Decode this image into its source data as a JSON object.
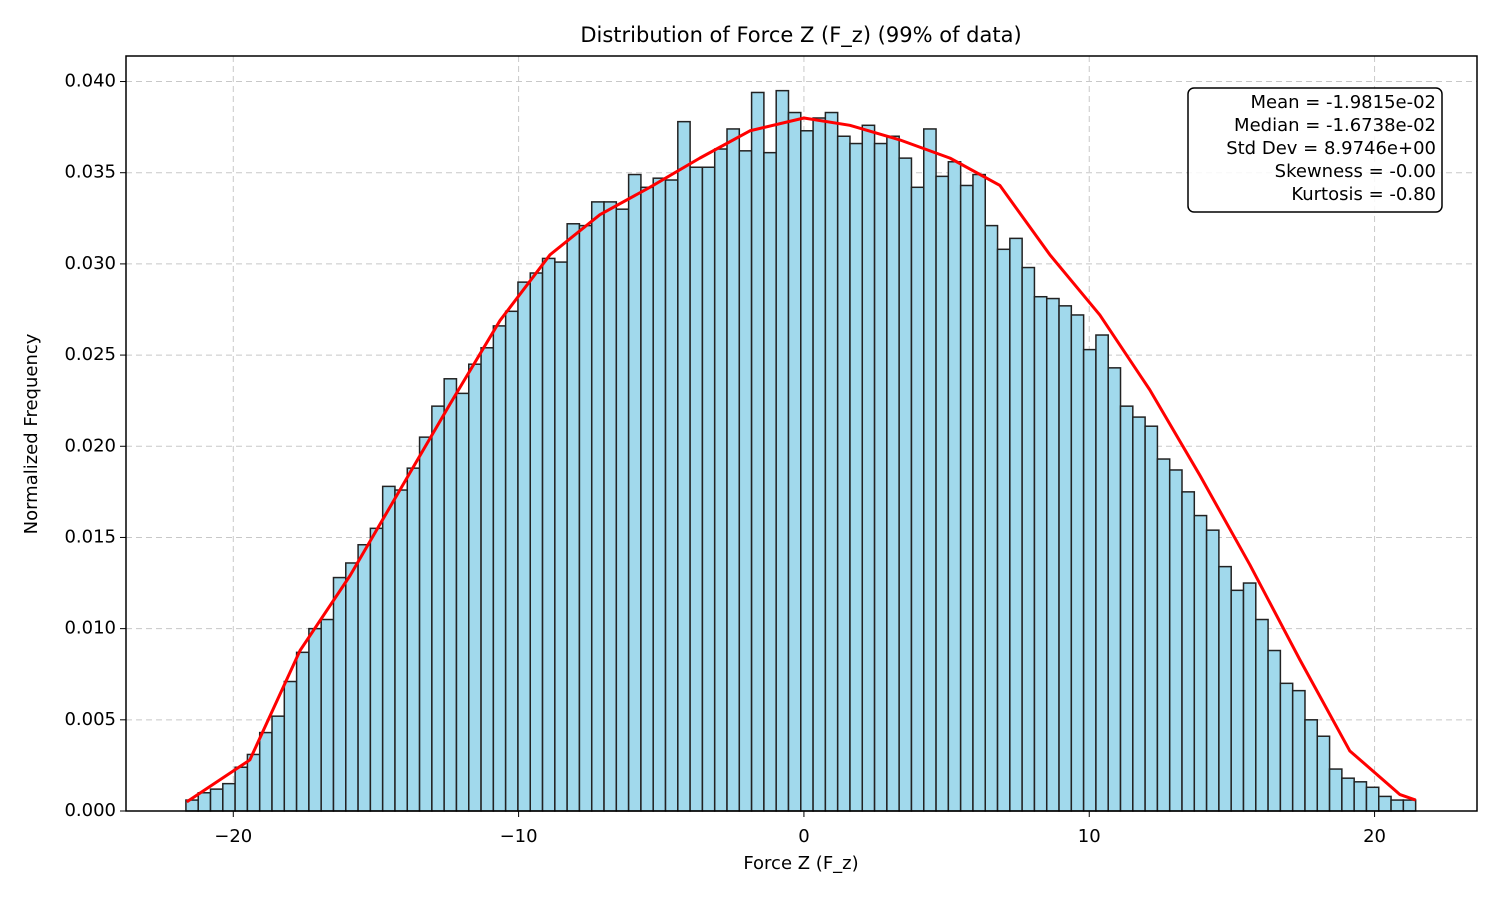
{
  "chart_data": {
    "type": "histogram",
    "title": "Distribution of Force Z (F_z) (99% of data)",
    "x_label": "Force Z (F_z)",
    "y_label": "Normalized Frequency",
    "color": "#a1d9ec",
    "edgecolor": "#222222",
    "bins": [
      -21.66,
      -21.229,
      -20.798,
      -20.367,
      -19.936,
      -19.505,
      -19.074,
      -18.643,
      -18.212,
      -17.781,
      -17.35,
      -16.919,
      -16.488,
      -16.057,
      -15.626,
      -15.195,
      -14.764,
      -14.333,
      -13.902,
      -13.471,
      -13.04,
      -12.609,
      -12.178,
      -11.747,
      -11.316,
      -10.885,
      -10.454,
      -10.023,
      -9.592,
      -9.161,
      -8.73,
      -8.299,
      -7.868,
      -7.437,
      -7.006,
      -6.575,
      -6.144,
      -5.713,
      -5.282,
      -4.851,
      -4.42,
      -3.989,
      -3.558,
      -3.127,
      -2.696,
      -2.265,
      -1.834,
      -1.403,
      -0.972,
      -0.541,
      -0.11,
      0.321,
      0.752,
      1.183,
      1.614,
      2.045,
      2.476,
      2.907,
      3.338,
      3.769,
      4.2,
      4.631,
      5.062,
      5.493,
      5.924,
      6.355,
      6.786,
      7.217,
      7.648,
      8.079,
      8.51,
      8.941,
      9.372,
      9.803,
      10.234,
      10.665,
      11.096,
      11.527,
      11.958,
      12.389,
      12.82,
      13.251,
      13.682,
      14.113,
      14.544,
      14.975,
      15.406,
      15.837,
      16.268,
      16.699,
      17.13,
      17.561,
      17.992,
      18.423,
      18.854,
      19.285,
      19.716,
      20.147,
      20.578,
      21.009,
      21.44
    ],
    "values": [
      0.0006,
      0.001,
      0.0012,
      0.0015,
      0.0024,
      0.0031,
      0.0043,
      0.0052,
      0.0071,
      0.0087,
      0.01,
      0.0105,
      0.0128,
      0.0136,
      0.0146,
      0.0155,
      0.0178,
      0.0176,
      0.0188,
      0.0205,
      0.0222,
      0.0237,
      0.0229,
      0.0245,
      0.0254,
      0.0266,
      0.0274,
      0.029,
      0.0295,
      0.0303,
      0.0301,
      0.0322,
      0.0321,
      0.0334,
      0.0334,
      0.033,
      0.0349,
      0.0342,
      0.0347,
      0.0346,
      0.0378,
      0.0353,
      0.0353,
      0.0363,
      0.0374,
      0.0362,
      0.0394,
      0.0361,
      0.0395,
      0.0383,
      0.0373,
      0.038,
      0.0383,
      0.037,
      0.0366,
      0.0376,
      0.0366,
      0.037,
      0.0358,
      0.0342,
      0.0374,
      0.0348,
      0.0356,
      0.0343,
      0.0349,
      0.0321,
      0.0308,
      0.0314,
      0.0298,
      0.0282,
      0.0281,
      0.0277,
      0.0272,
      0.0253,
      0.0261,
      0.0243,
      0.0222,
      0.0216,
      0.0211,
      0.0193,
      0.0187,
      0.0175,
      0.0162,
      0.0154,
      0.0134,
      0.0121,
      0.0125,
      0.0105,
      0.0088,
      0.007,
      0.0066,
      0.005,
      0.0041,
      0.0023,
      0.0018,
      0.0016,
      0.0013,
      0.0008,
      0.0006,
      0.0006
    ],
    "kde": {
      "color": "#ff0000",
      "x": [
        -21.63,
        -19.42,
        -17.66,
        -15.91,
        -14.16,
        -12.41,
        -10.65,
        -8.9,
        -7.15,
        -5.4,
        -3.65,
        -1.89,
        0,
        1.61,
        3.36,
        5.12,
        6.87,
        8.62,
        10.37,
        12.12,
        13.88,
        15.63,
        17.38,
        19.13,
        20.89,
        21.44
      ],
      "values": [
        0.0005,
        0.0028,
        0.0088,
        0.0129,
        0.0176,
        0.0223,
        0.0269,
        0.0305,
        0.0327,
        0.0342,
        0.0358,
        0.0373,
        0.038,
        0.0376,
        0.0368,
        0.0358,
        0.0343,
        0.0305,
        0.0272,
        0.0231,
        0.0184,
        0.0135,
        0.0083,
        0.0033,
        0.0009,
        0.0006
      ]
    },
    "stats": [
      "Mean = -1.9815e-02",
      "Median = -1.6738e-02",
      "Std Dev = 8.9746e+00",
      "Skewness = -0.00",
      "Kurtosis = -0.80"
    ],
    "xlim": [
      -23.76,
      23.59
    ],
    "ylim": [
      0,
      0.0414
    ],
    "xticks": [
      {
        "value": -20,
        "label": "−20"
      },
      {
        "value": -10,
        "label": "−10"
      },
      0,
      10,
      20
    ],
    "yticks": [
      {
        "value": 0,
        "label": "0.000"
      },
      {
        "value": 0.005,
        "label": "0.005"
      },
      {
        "value": 0.01,
        "label": "0.010"
      },
      {
        "value": 0.015,
        "label": "0.015"
      },
      {
        "value": 0.02,
        "label": "0.020"
      },
      {
        "value": 0.025,
        "label": "0.025"
      },
      {
        "value": 0.03,
        "label": "0.030"
      },
      {
        "value": 0.035,
        "label": "0.035"
      },
      {
        "value": 0.04,
        "label": "0.040"
      }
    ],
    "grid": true
  }
}
